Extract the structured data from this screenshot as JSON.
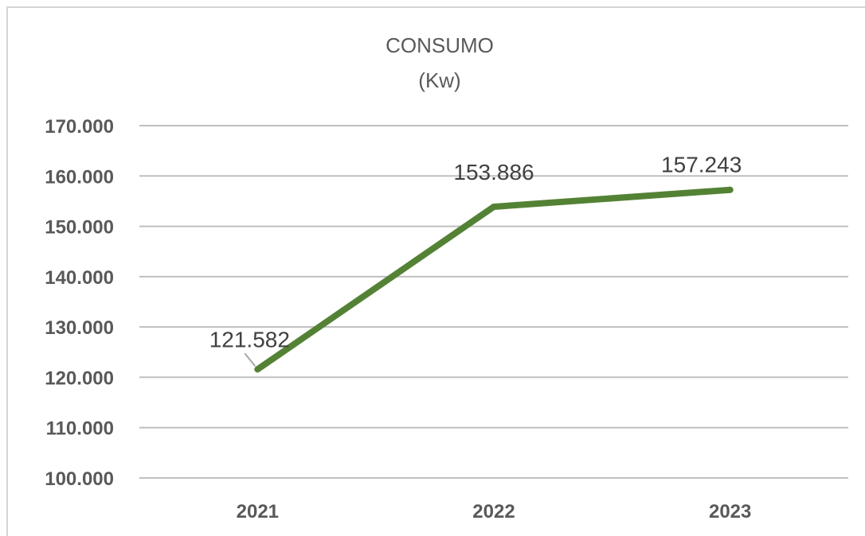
{
  "chart_data": {
    "type": "line",
    "title": "CONSUMO",
    "subtitle": "(Kw)",
    "categories": [
      "2021",
      "2022",
      "2023"
    ],
    "series": [
      {
        "values": [
          121582,
          153886,
          157243
        ],
        "data_labels": [
          "121.582",
          "153.886",
          "157.243"
        ],
        "color": "#548235"
      }
    ],
    "ylim": [
      100000,
      170000
    ],
    "y_ticks": [
      100000,
      110000,
      120000,
      130000,
      140000,
      150000,
      160000,
      170000
    ],
    "y_tick_labels": [
      "100.000",
      "110.000",
      "120.000",
      "130.000",
      "140.000",
      "150.000",
      "160.000",
      "170.000"
    ],
    "grid": true,
    "legend": "none"
  },
  "colors": {
    "line": "#548235",
    "grid": "#bfbfbf",
    "text": "#595959"
  }
}
